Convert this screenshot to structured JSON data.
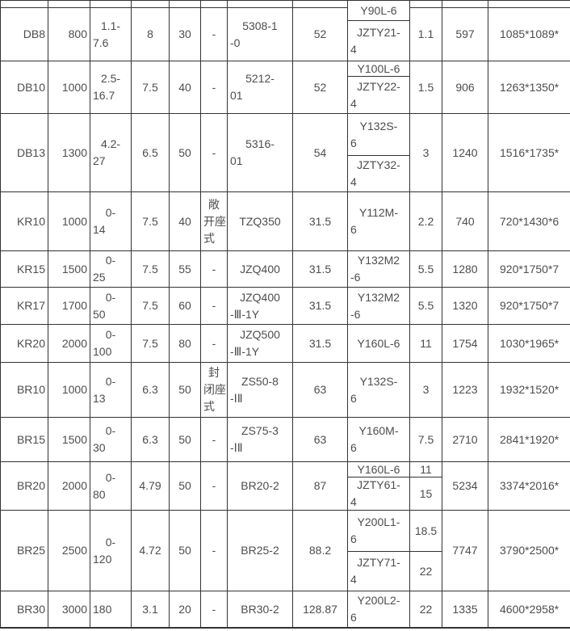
{
  "colors": {
    "background": "#ffffff",
    "border": "#333333",
    "text": "#4d4d4d"
  },
  "table": {
    "rows": [
      {
        "model": "DB8",
        "capacity": "800",
        "range": "1.1-\n7.6",
        "v4": "8",
        "v5": "30",
        "type": "-",
        "drive": "5308-1\n-0",
        "v8": "52",
        "motors": [
          "Y90L-6",
          "JZTY21-\n4"
        ],
        "powers": [
          "1.1"
        ],
        "weight": "597",
        "dims": "1085*1089*"
      },
      {
        "model": "DB10",
        "capacity": "1000",
        "range": "2.5-\n16.7",
        "v4": "7.5",
        "v5": "40",
        "type": "-",
        "drive": "5212-\n01",
        "v8": "52",
        "motors": [
          "Y100L-6",
          "JZTY22-\n4"
        ],
        "powers": [
          "1.5"
        ],
        "weight": "906",
        "dims": "1263*1350*"
      },
      {
        "model": "DB13",
        "capacity": "1300",
        "range": "4.2-\n27",
        "v4": "6.5",
        "v5": "50",
        "type": "-",
        "drive": "5316-\n01",
        "v8": "54",
        "motors": [
          "Y132S-\n6",
          "JZTY32-\n4"
        ],
        "powers": [
          "3"
        ],
        "weight": "1240",
        "dims": "1516*1735*"
      },
      {
        "model": "KR10",
        "capacity": "1000",
        "range": "0-\n14",
        "v4": "7.5",
        "v5": "40",
        "type": "敞\n开座\n式",
        "drive": "TZQ350",
        "v8": "31.5",
        "motors": [
          "Y112M-\n6"
        ],
        "powers": [
          "2.2"
        ],
        "weight": "740",
        "dims": "720*1430*6"
      },
      {
        "model": "KR15",
        "capacity": "1500",
        "range": "0-\n25",
        "v4": "7.5",
        "v5": "55",
        "type": "-",
        "drive": "JZQ400",
        "v8": "31.5",
        "motors": [
          "Y132M2\n-6"
        ],
        "powers": [
          "5.5"
        ],
        "weight": "1280",
        "dims": "920*1750*7"
      },
      {
        "model": "KR17",
        "capacity": "1700",
        "range": "0-\n50",
        "v4": "7.5",
        "v5": "60",
        "type": "-",
        "drive": "JZQ400\n-Ⅲ-1Y",
        "v8": "31.5",
        "motors": [
          "Y132M2\n-6"
        ],
        "powers": [
          "5.5"
        ],
        "weight": "1320",
        "dims": "920*1750*7"
      },
      {
        "model": "KR20",
        "capacity": "2000",
        "range": "0-\n100",
        "v4": "7.5",
        "v5": "80",
        "type": "-",
        "drive": "JZQ500\n-Ⅲ-1Y",
        "v8": "31.5",
        "motors": [
          "Y160L-6"
        ],
        "powers": [
          "11"
        ],
        "weight": "1754",
        "dims": "1030*1965*"
      },
      {
        "model": "BR10",
        "capacity": "1000",
        "range": "0-\n13",
        "v4": "6.3",
        "v5": "50",
        "type": "封\n闭座\n式",
        "drive": "ZS50-8\n-ⅠⅡ",
        "v8": "63",
        "motors": [
          "Y132S-\n6"
        ],
        "powers": [
          "3"
        ],
        "weight": "1223",
        "dims": "1932*1520*"
      },
      {
        "model": "BR15",
        "capacity": "1500",
        "range": "0-\n30",
        "v4": "6.3",
        "v5": "50",
        "type": "-",
        "drive": "ZS75-3\n-ⅠⅡ",
        "v8": "63",
        "motors": [
          "Y160M-\n6"
        ],
        "powers": [
          "7.5"
        ],
        "weight": "2710",
        "dims": "2841*1920*"
      },
      {
        "model": "BR20",
        "capacity": "2000",
        "range": "0-\n80",
        "v4": "4.79",
        "v5": "50",
        "type": "-",
        "drive": "BR20-2",
        "v8": "87",
        "motors": [
          "Y160L-6",
          "JZTY61-\n4"
        ],
        "powers": [
          "11",
          "15"
        ],
        "weight": "5234",
        "dims": "3374*2016*"
      },
      {
        "model": "BR25",
        "capacity": "2500",
        "range": "0-\n120",
        "v4": "4.72",
        "v5": "50",
        "type": "-",
        "drive": "BR25-2",
        "v8": "88.2",
        "motors": [
          "Y200L1-\n6",
          "JZTY71-\n4"
        ],
        "powers": [
          "18.5",
          "22"
        ],
        "weight": "7747",
        "dims": "3790*2500*"
      },
      {
        "model": "BR30",
        "capacity": "3000",
        "range": "180",
        "v4": "3.1",
        "v5": "20",
        "type": "-",
        "drive": "BR30-2",
        "v8": "128.87",
        "motors": [
          "Y200L2-\n6"
        ],
        "powers": [
          "22"
        ],
        "weight": "1335",
        "dims": "4600*2958*"
      }
    ]
  }
}
